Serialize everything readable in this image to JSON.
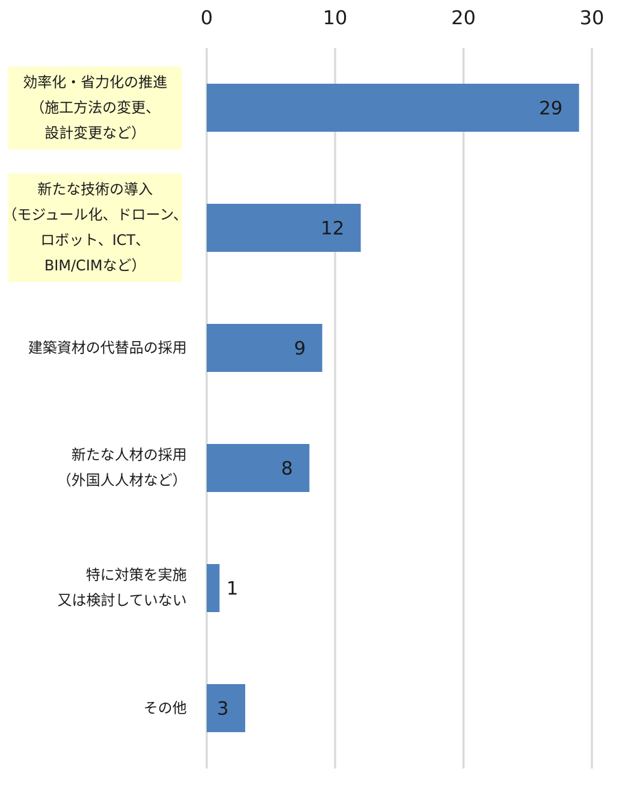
{
  "chart_data": {
    "type": "bar",
    "orientation": "horizontal",
    "title": "",
    "xlabel": "",
    "ylabel": "",
    "xlim": [
      0,
      30
    ],
    "x_ticks": [
      0,
      10,
      20,
      30
    ],
    "tick_position": "top",
    "grid": true,
    "legend": "none",
    "bar_color": "#4f81bd",
    "grid_color": "#d9d9d9",
    "highlight_color": "#ffffcc",
    "categories": [
      {
        "lines": [
          "効率化・省力化の推進",
          "（施工方法の変更、",
          "設計変更など）"
        ],
        "highlight": true
      },
      {
        "lines": [
          "新たな技術の導入",
          "（モジュール化、ドローン、",
          "ロボット、ICT、",
          "BIM/CIMなど）"
        ],
        "highlight": true
      },
      {
        "lines": [
          "建築資材の代替品の採用"
        ],
        "highlight": false
      },
      {
        "lines": [
          "新たな人材の採用",
          "（外国人人材など）"
        ],
        "highlight": false
      },
      {
        "lines": [
          "特に対策を実施",
          "又は検討していない"
        ],
        "highlight": false
      },
      {
        "lines": [
          "その他"
        ],
        "highlight": false
      }
    ],
    "values": [
      29,
      12,
      9,
      8,
      1,
      3
    ],
    "data_labels": [
      "29",
      "12",
      "9",
      "8",
      "1",
      "3"
    ]
  }
}
